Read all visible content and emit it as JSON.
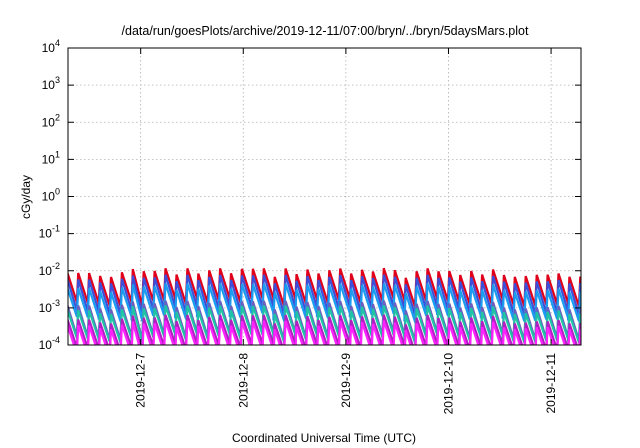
{
  "chart_data": {
    "type": "line",
    "title": "/data/run/goesPlots/archive/2019-12-11/07:00/bryn/../bryn/5daysMars.plot",
    "xlabel": "Coordinated Universal Time (UTC)",
    "ylabel": "cGy/day",
    "yscale": "log",
    "ylim": [
      0.0001,
      10000
    ],
    "xlim": [
      "2019-12-06 07:00",
      "2019-12-11 07:00"
    ],
    "x_ticks": [
      "2019-12-7",
      "2019-12-8",
      "2019-12-9",
      "2019-12-10",
      "2019-12-11"
    ],
    "y_ticks": [
      {
        "base": "10",
        "exp": "-4"
      },
      {
        "base": "10",
        "exp": "-3"
      },
      {
        "base": "10",
        "exp": "-2"
      },
      {
        "base": "10",
        "exp": "-1"
      },
      {
        "base": "10",
        "exp": "0"
      },
      {
        "base": "10",
        "exp": "1"
      },
      {
        "base": "10",
        "exp": "2"
      },
      {
        "base": "10",
        "exp": "3"
      },
      {
        "base": "10",
        "exp": "4"
      }
    ],
    "grid": true,
    "series": [
      {
        "color": "#e0001a",
        "peak": 0.009,
        "trough": 0.0015
      },
      {
        "color": "#3b4fd8",
        "peak": 0.006,
        "trough": 0.0009
      },
      {
        "color": "#1a9cf0",
        "peak": 0.0035,
        "trough": 0.0006
      },
      {
        "color": "#6a5fbf",
        "peak": 0.0012,
        "trough": 0.00018
      },
      {
        "color": "#1fc3a6",
        "peak": 0.0009,
        "trough": 0.00016
      },
      {
        "color": "#b020c0",
        "peak": 0.0005,
        "trough": 9e-05
      },
      {
        "color": "#ff22ff",
        "peak": 0.00035,
        "trough": 6e-05
      }
    ],
    "cycles": 47
  }
}
